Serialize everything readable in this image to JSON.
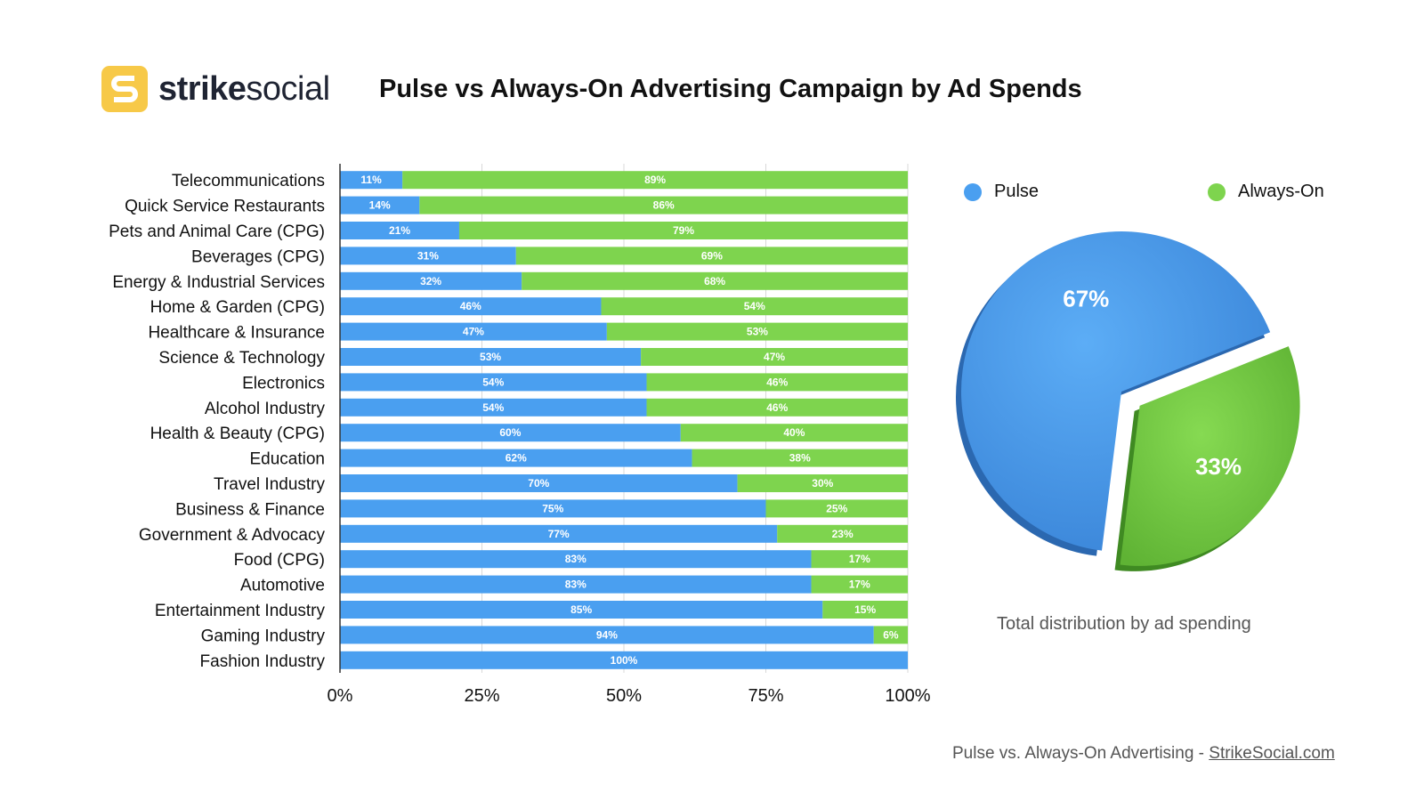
{
  "brand": {
    "name_bold": "strike",
    "name_light": "social",
    "logo_color": "#f7c948",
    "logo_letter": "S"
  },
  "title": "Pulse vs Always-On Advertising Campaign by Ad Spends",
  "colors": {
    "pulse": "#4a9ff0",
    "always_on": "#7ed44e"
  },
  "chart_data": [
    {
      "type": "bar",
      "orientation": "horizontal",
      "stacked": true,
      "categories": [
        "Telecommunications",
        "Quick Service Restaurants",
        "Pets and Animal Care (CPG)",
        "Beverages (CPG)",
        "Energy & Industrial Services",
        "Home & Garden (CPG)",
        "Healthcare & Insurance",
        "Science & Technology",
        "Electronics",
        "Alcohol Industry",
        "Health & Beauty (CPG)",
        "Education",
        "Travel Industry",
        "Business & Finance",
        "Government & Advocacy",
        "Food (CPG)",
        "Automotive",
        "Entertainment Industry",
        "Gaming Industry",
        "Fashion Industry"
      ],
      "series": [
        {
          "name": "Pulse",
          "values": [
            11,
            14,
            21,
            31,
            32,
            46,
            47,
            53,
            54,
            54,
            60,
            62,
            70,
            75,
            77,
            83,
            83,
            85,
            94,
            100
          ]
        },
        {
          "name": "Always-On",
          "values": [
            89,
            86,
            79,
            69,
            68,
            54,
            53,
            47,
            46,
            46,
            40,
            38,
            30,
            25,
            23,
            17,
            17,
            15,
            6,
            0
          ]
        }
      ],
      "xticks": [
        "0%",
        "25%",
        "50%",
        "75%",
        "100%"
      ],
      "xlim": [
        0,
        100
      ],
      "grid": true
    },
    {
      "type": "pie",
      "title": "Total distribution by ad spending",
      "labels": [
        "Pulse",
        "Always-On"
      ],
      "values": [
        67,
        33
      ],
      "value_labels": [
        "67%",
        "33%"
      ],
      "legend": "top"
    }
  ],
  "legend": {
    "pulse_label": "Pulse",
    "always_on_label": "Always-On"
  },
  "pie_caption": "Total distribution by ad spending",
  "footer": {
    "prefix": "Pulse vs. Always-On Advertising - ",
    "link": "StrikeSocial.com"
  }
}
